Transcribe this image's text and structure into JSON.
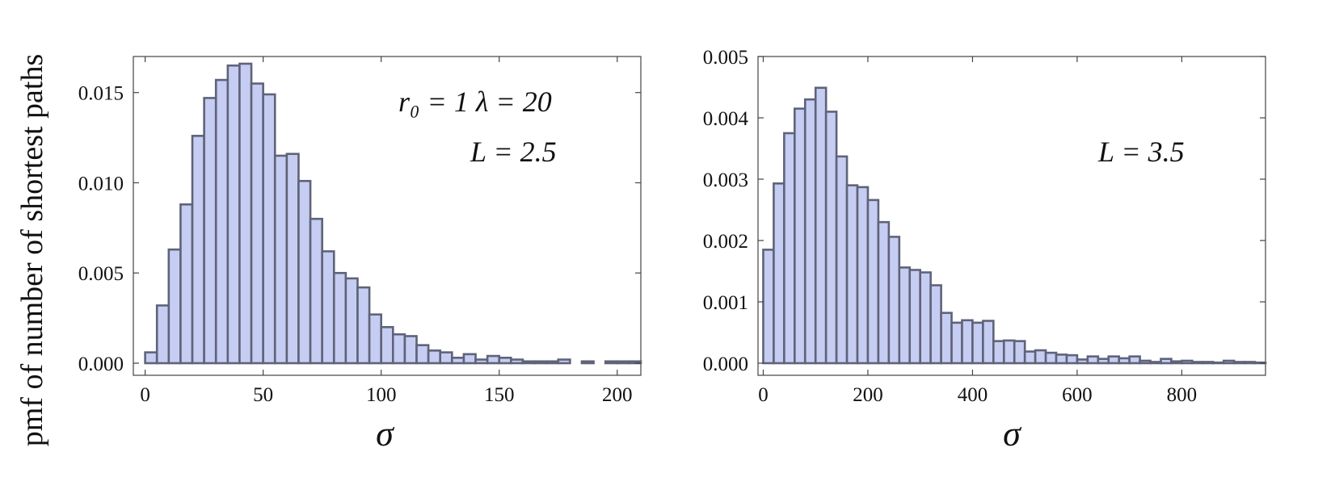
{
  "figure": {
    "ylabel": "pmf of number of shortest paths"
  },
  "chart_data": [
    {
      "type": "bar",
      "xlabel": "σ",
      "xlim": [
        -5,
        210
      ],
      "ylim": [
        0,
        0.017
      ],
      "xticks": [
        0,
        50,
        100,
        150,
        200
      ],
      "xtick_labels": [
        "0",
        "50",
        "100",
        "150",
        "200"
      ],
      "yticks": [
        0,
        0.005,
        0.01,
        0.015
      ],
      "ytick_labels": [
        "0.000",
        "0.005",
        "0.010",
        "0.015"
      ],
      "bin_width": 5,
      "bin_start": 0,
      "values": [
        0.0006,
        0.0032,
        0.0063,
        0.0088,
        0.0126,
        0.0147,
        0.0157,
        0.0165,
        0.0166,
        0.0155,
        0.0149,
        0.0115,
        0.0116,
        0.0101,
        0.008,
        0.0062,
        0.005,
        0.0047,
        0.0042,
        0.0027,
        0.002,
        0.0016,
        0.0015,
        0.001,
        0.0007,
        0.0006,
        0.0003,
        0.0005,
        0.0002,
        0.0004,
        0.0003,
        0.0002,
        0.0001,
        0.0001,
        0.0001,
        0.0002,
        0.0,
        0.0001,
        0.0,
        0.0001,
        0.0001,
        0.0001
      ],
      "annotations": [
        {
          "text": "r₀ = 1  λ = 20"
        },
        {
          "text": "L = 2.5"
        }
      ],
      "colors": {
        "fill": "#c6cdf2",
        "stroke": "#5f6379"
      },
      "grid": false
    },
    {
      "type": "bar",
      "xlabel": "σ",
      "xlim": [
        -10,
        960
      ],
      "ylim": [
        0,
        0.005
      ],
      "xticks": [
        0,
        200,
        400,
        600,
        800
      ],
      "xtick_labels": [
        "0",
        "200",
        "400",
        "600",
        "800"
      ],
      "yticks": [
        0,
        0.001,
        0.002,
        0.003,
        0.004,
        0.005
      ],
      "ytick_labels": [
        "0.000",
        "0.001",
        "0.002",
        "0.003",
        "0.004",
        "0.005"
      ],
      "bin_width": 20,
      "bin_start": 0,
      "values": [
        0.00185,
        0.00293,
        0.00375,
        0.00415,
        0.0043,
        0.00449,
        0.0041,
        0.00337,
        0.0029,
        0.00287,
        0.00266,
        0.0023,
        0.00206,
        0.00156,
        0.00152,
        0.00148,
        0.00127,
        0.00082,
        0.00066,
        0.0007,
        0.00066,
        0.00069,
        0.00036,
        0.00037,
        0.00036,
        0.00019,
        0.00021,
        0.00017,
        0.00014,
        0.00013,
        6e-05,
        0.00011,
        7e-05,
        0.00011,
        8e-05,
        0.00011,
        4e-05,
        2e-05,
        7e-05,
        3e-05,
        4e-05,
        2e-05,
        2e-05,
        1e-05,
        4e-05,
        2e-05,
        2e-05,
        1e-05
      ],
      "annotations": [
        {
          "text": "L = 3.5"
        }
      ],
      "colors": {
        "fill": "#c6cdf2",
        "stroke": "#5f6379"
      },
      "grid": false
    }
  ]
}
